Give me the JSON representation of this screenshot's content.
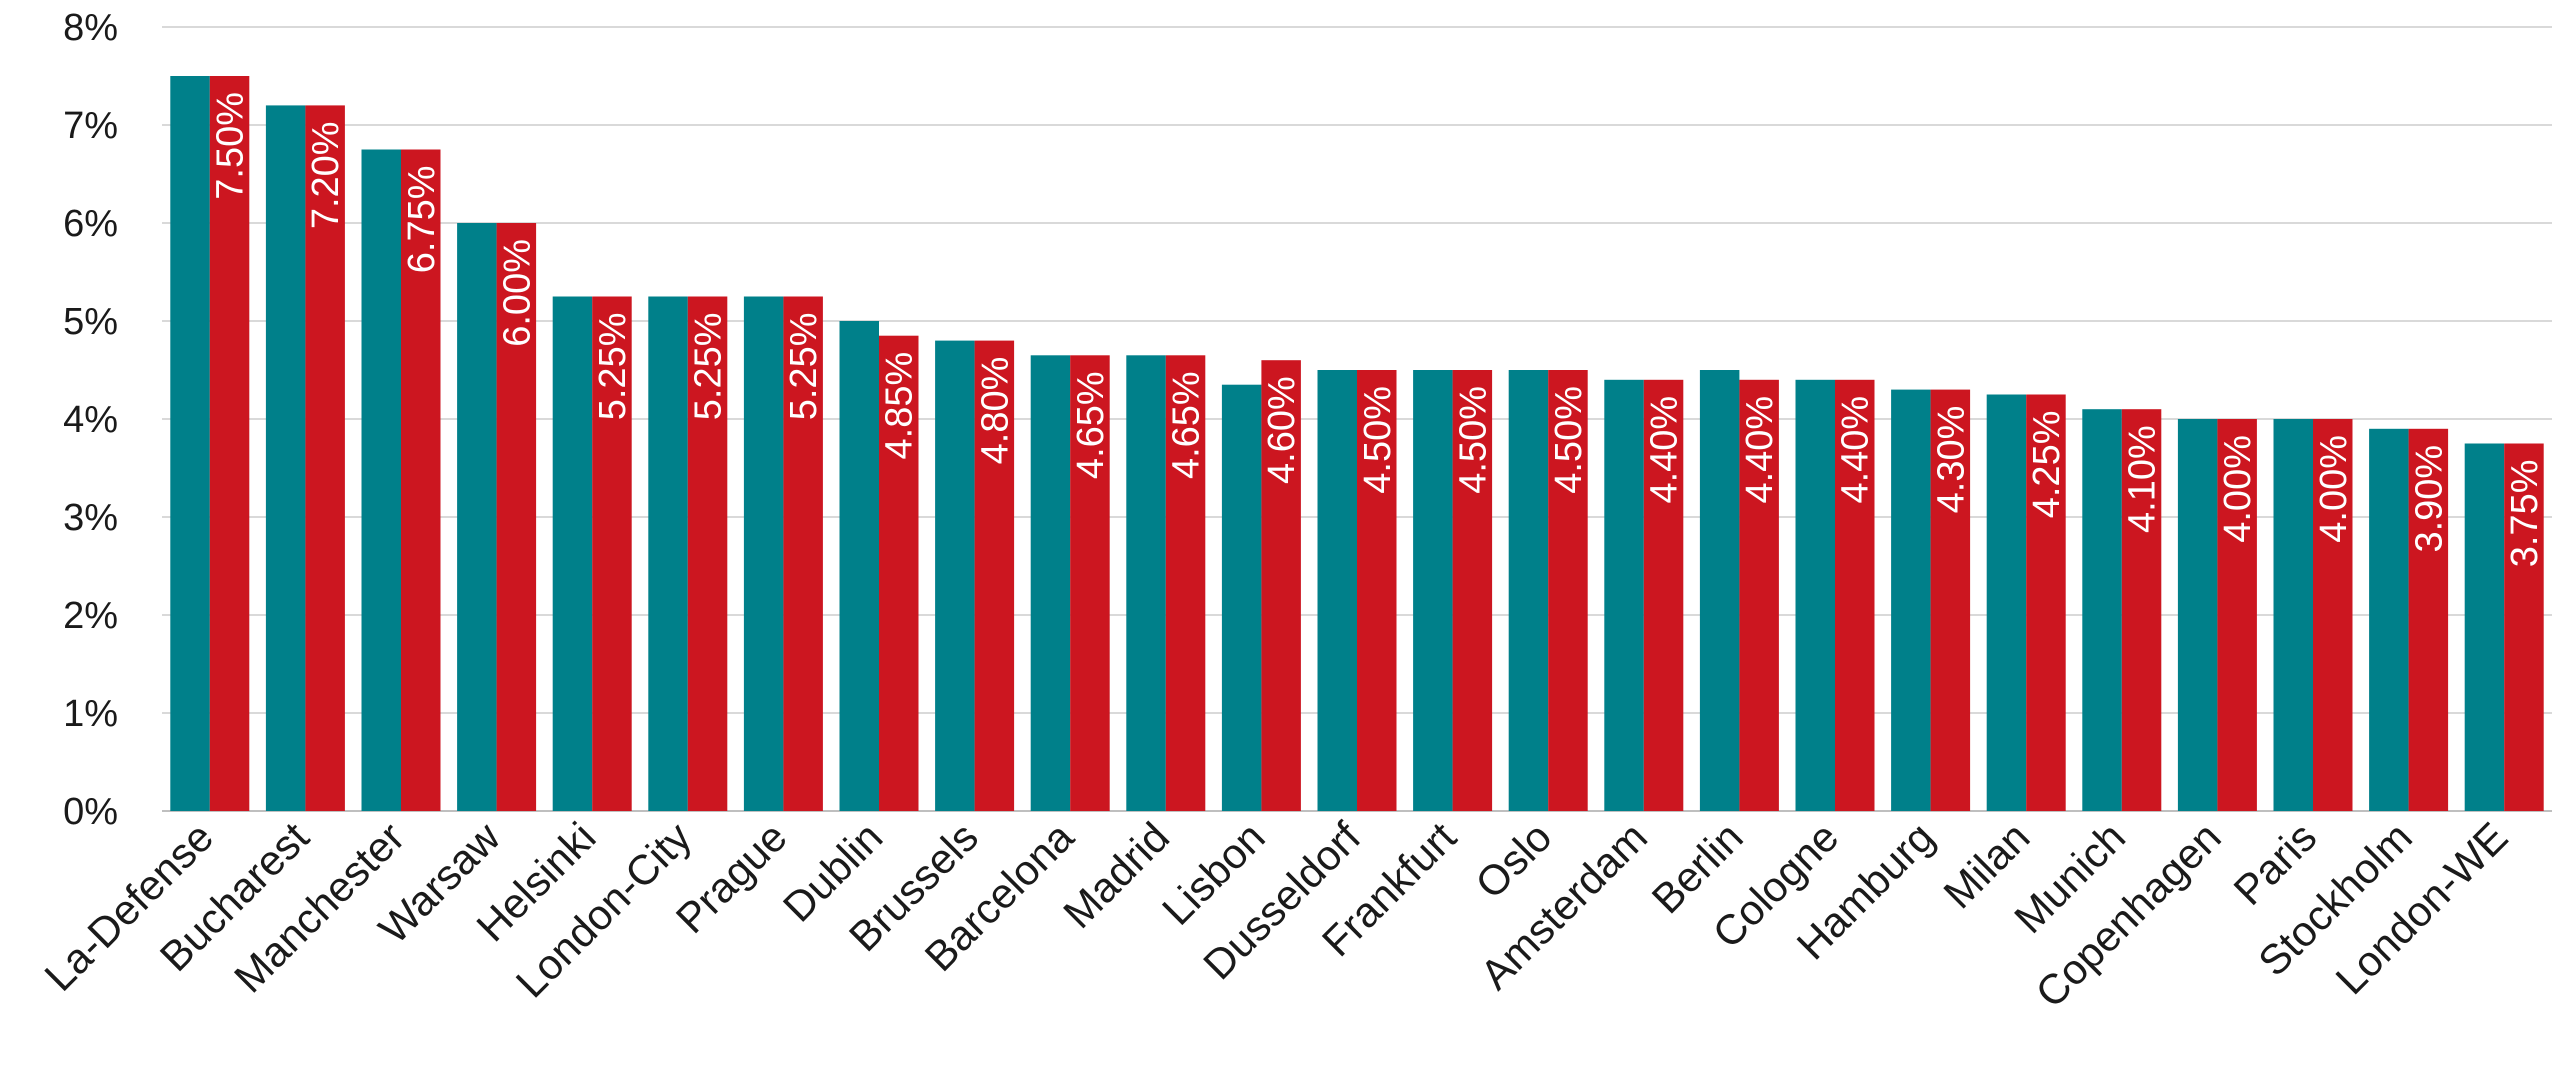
{
  "chart_data": {
    "type": "bar",
    "categories": [
      "La-Defense",
      "Bucharest",
      "Manchester",
      "Warsaw",
      "Helsinki",
      "London-City",
      "Prague",
      "Dublin",
      "Brussels",
      "Barcelona",
      "Madrid",
      "Lisbon",
      "Dusseldorf",
      "Frankfurt",
      "Oslo",
      "Amsterdam",
      "Berlin",
      "Cologne",
      "Hamburg",
      "Milan",
      "Munich",
      "Copenhagen",
      "Paris",
      "Stockholm",
      "London-WE"
    ],
    "series": [
      {
        "values": [
          7.5,
          7.2,
          6.75,
          6.0,
          5.25,
          5.25,
          5.25,
          5.0,
          4.8,
          4.65,
          4.65,
          4.35,
          4.5,
          4.5,
          4.5,
          4.4,
          4.5,
          4.4,
          4.3,
          4.25,
          4.1,
          4.0,
          4.0,
          3.9,
          3.75
        ],
        "color": "#00808a"
      },
      {
        "values": [
          7.5,
          7.2,
          6.75,
          6.0,
          5.25,
          5.25,
          5.25,
          4.85,
          4.8,
          4.65,
          4.65,
          4.6,
          4.5,
          4.5,
          4.5,
          4.4,
          4.4,
          4.4,
          4.3,
          4.25,
          4.1,
          4.0,
          4.0,
          3.9,
          3.75
        ],
        "color": "#cc1620"
      }
    ],
    "data_labels": [
      "7.50%",
      "7.20%",
      "6.75%",
      "6.00%",
      "5.25%",
      "5.25%",
      "5.25%",
      "4.85%",
      "4.80%",
      "4.65%",
      "4.65%",
      "4.60%",
      "4.50%",
      "4.50%",
      "4.50%",
      "4.40%",
      "4.40%",
      "4.40%",
      "4.30%",
      "4.25%",
      "4.10%",
      "4.00%",
      "4.00%",
      "3.90%",
      "3.75%"
    ],
    "y_ticks": [
      "0%",
      "1%",
      "2%",
      "3%",
      "4%",
      "5%",
      "6%",
      "7%",
      "8%"
    ],
    "ylim": [
      0,
      8
    ],
    "grid": true,
    "legend": "none"
  }
}
